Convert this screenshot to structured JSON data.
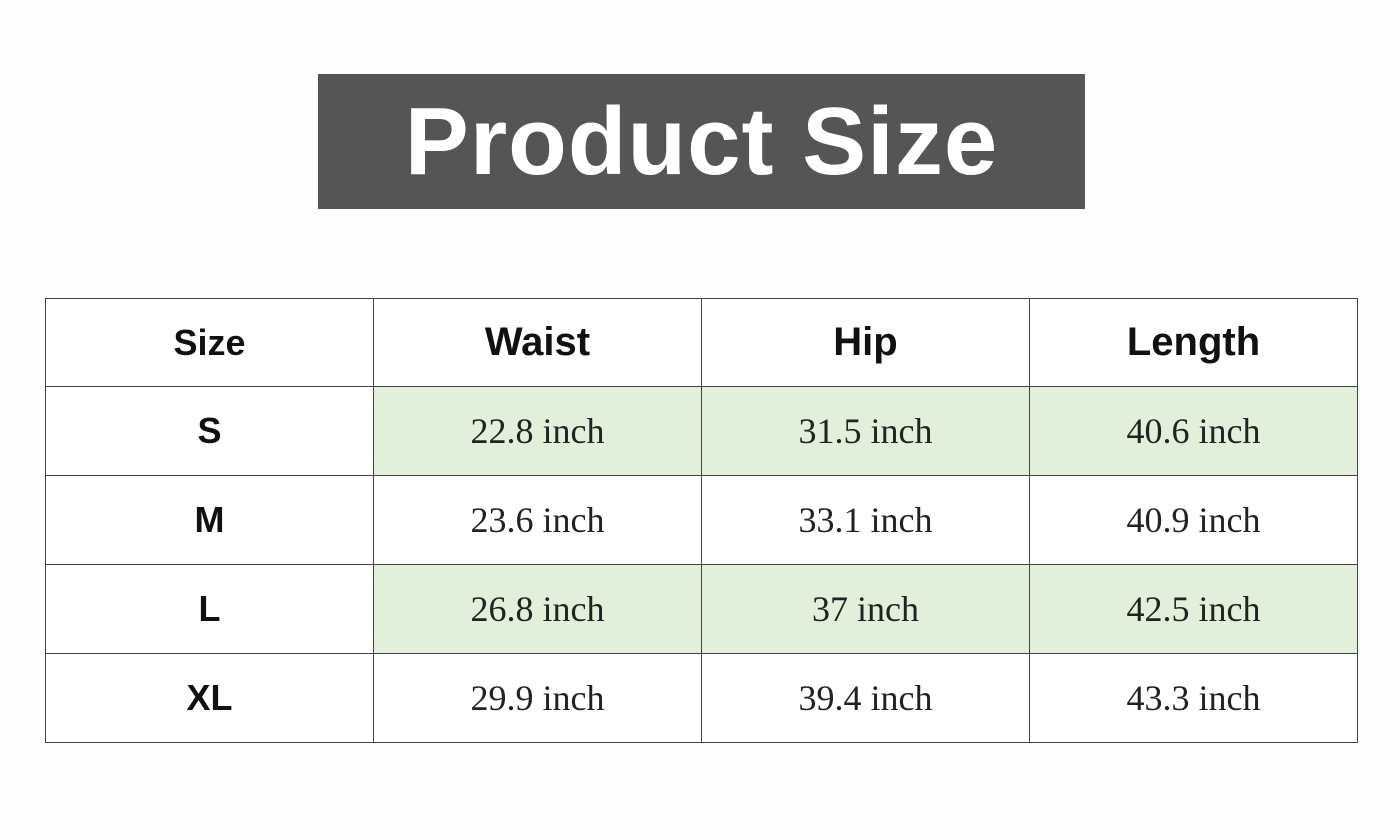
{
  "title": "Product Size",
  "table": {
    "headers": [
      "Size",
      "Waist",
      "Hip",
      "Length"
    ],
    "rows": [
      {
        "size": "S",
        "waist": "22.8 inch",
        "hip": "31.5 inch",
        "length": "40.6 inch",
        "highlight": true
      },
      {
        "size": "M",
        "waist": "23.6 inch",
        "hip": "33.1 inch",
        "length": "40.9 inch",
        "highlight": false
      },
      {
        "size": "L",
        "waist": "26.8 inch",
        "hip": "37 inch",
        "length": "42.5 inch",
        "highlight": true
      },
      {
        "size": "XL",
        "waist": "29.9 inch",
        "hip": "39.4 inch",
        "length": "43.3 inch",
        "highlight": false
      }
    ],
    "highlight_color": "#e2efda",
    "title_bg_color": "#555555"
  }
}
